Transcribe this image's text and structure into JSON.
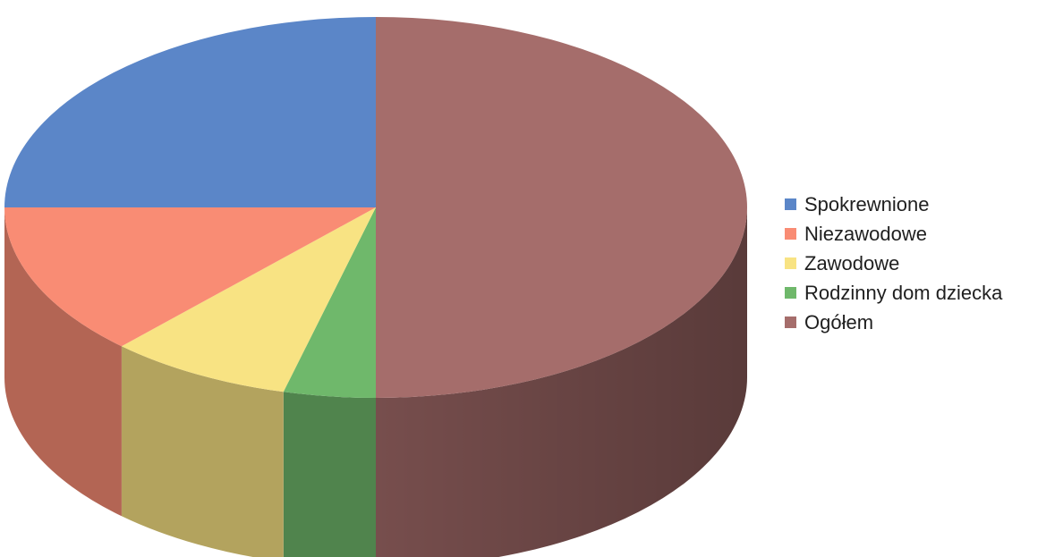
{
  "chart_data": {
    "type": "pie",
    "style": "3d",
    "title": "",
    "legend_position": "right",
    "series": [
      {
        "categories": [
          "Spokrewnione",
          "Niezawodowe",
          "Zawodowe",
          "Rodzinny dom dziecka",
          "Ogółem"
        ],
        "values": [
          25,
          13,
          8,
          4,
          50
        ]
      }
    ]
  },
  "legend": {
    "items": [
      {
        "label": "Spokrewnione",
        "color": "#5b86c8"
      },
      {
        "label": "Niezawodowe",
        "color": "#f98c74"
      },
      {
        "label": "Zawodowe",
        "color": "#f8e383"
      },
      {
        "label": "Rodzinny dom dziecka",
        "color": "#6fb86b"
      },
      {
        "label": "Ogółem",
        "color": "#a56d6b"
      }
    ]
  }
}
